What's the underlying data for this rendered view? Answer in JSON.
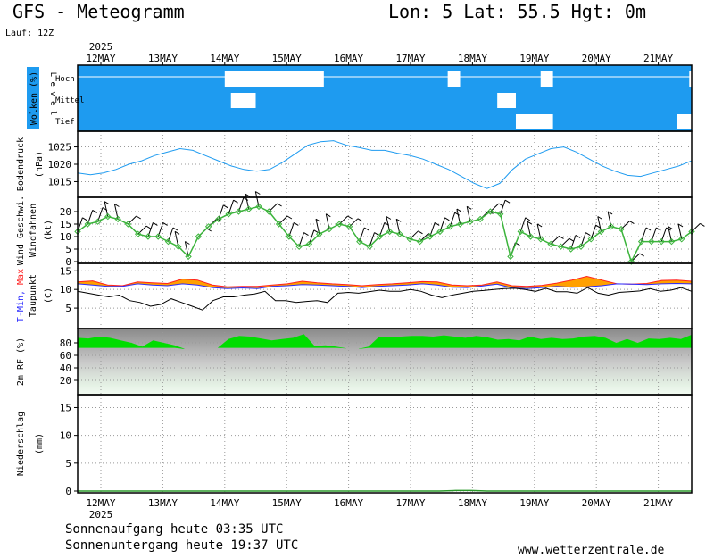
{
  "header": {
    "title": "GFS - Meteogramm",
    "location": "Lon: 5 Lat: 55.5 Hgt: 0m",
    "run": "Lauf: 12Z",
    "year": "2025"
  },
  "footer": {
    "sunrise": "Sonnenaufgang heute 03:35 UTC",
    "sunset": "Sonnenuntergang heute 19:37 UTC",
    "website": "www.wetterzentrale.de"
  },
  "colors": {
    "cloud_sky": "#1e9bf0",
    "pressure_line": "#1e9bf0",
    "wind": "#3cb43c",
    "tmin": "#2a2aff",
    "tmax": "#ff2020",
    "temp_fill": "#ffa000",
    "humidity": "#00dd00"
  },
  "chart_data": {
    "type": "line",
    "time_axis": {
      "days": [
        "12MAY",
        "13MAY",
        "14MAY",
        "15MAY",
        "16MAY",
        "17MAY",
        "18MAY",
        "19MAY",
        "20MAY",
        "21MAY"
      ],
      "start": "12MAY 00 UTC",
      "step_hours": 6
    },
    "panels": [
      {
        "id": "clouds",
        "ylabel": "Wolken (%)",
        "ylabel2": "L e v e l",
        "levels": [
          "Hoch",
          "Mittel",
          "Tief"
        ],
        "note": "mostly overcast at all levels; clear gaps shown in white",
        "gaps": [
          {
            "level": "Hoch",
            "from_day": 2.0,
            "to_day": 3.6
          },
          {
            "level": "Hoch",
            "from_day": 5.6,
            "to_day": 5.8
          },
          {
            "level": "Hoch",
            "from_day": 7.1,
            "to_day": 7.3
          },
          {
            "level": "Hoch",
            "from_day": 9.5,
            "to_day": 9.8
          },
          {
            "level": "Mittel",
            "from_day": 2.1,
            "to_day": 2.5
          },
          {
            "level": "Mittel",
            "from_day": 6.4,
            "to_day": 6.7
          },
          {
            "level": "Tief",
            "from_day": 6.7,
            "to_day": 7.3
          },
          {
            "level": "Tief",
            "from_day": 9.3,
            "to_day": 9.6
          }
        ]
      },
      {
        "id": "pressure",
        "ylabel": "Bodendruck",
        "unit": "(hPa)",
        "yticks": [
          1015,
          1020,
          1025
        ],
        "ylim": [
          1011,
          1029
        ],
        "series": [
          {
            "values": [
              1017.5,
              1017,
              1017.5,
              1018.5,
              1020,
              1021,
              1022.5,
              1023.5,
              1024.5,
              1024,
              1022.5,
              1021,
              1019.5,
              1018.5,
              1018,
              1018.5,
              1020.5,
              1023,
              1025.5,
              1026.5,
              1026.8,
              1025.5,
              1024.8,
              1024,
              1024,
              1023.2,
              1022.5,
              1021.5,
              1020,
              1018.5,
              1016.5,
              1014.5,
              1013,
              1014.5,
              1018.5,
              1021.5,
              1023,
              1024.5,
              1025,
              1023.5,
              1021.5,
              1019.5,
              1018,
              1016.8,
              1016.5,
              1017.5,
              1018.5,
              1019.5,
              1021
            ]
          }
        ]
      },
      {
        "id": "wind",
        "ylabel": "Wind Geschwi.",
        "ylabel2": "Windfahnen",
        "unit": "(kt)",
        "yticks": [
          0,
          5,
          10,
          15,
          20
        ],
        "ylim": [
          0,
          25
        ],
        "series": [
          {
            "name": "Wind Geschwi.",
            "values": [
              12,
              15,
              16,
              18,
              17,
              15,
              11,
              10,
              10,
              8,
              6,
              2,
              10,
              14,
              17,
              19,
              20,
              21,
              22,
              20,
              15,
              10,
              6,
              7,
              11,
              13,
              15,
              14,
              8,
              6,
              10,
              12,
              11,
              9,
              8,
              10,
              12,
              14,
              15,
              16,
              17,
              20,
              19,
              2,
              12,
              10,
              9,
              7,
              6,
              5,
              6,
              9,
              12,
              14,
              13,
              0,
              8,
              8,
              8,
              8,
              9,
              12
            ]
          }
        ]
      },
      {
        "id": "temperature",
        "ylabel": "T-Min, Max",
        "ylabel2": "Taupunkt",
        "unit": "(C)",
        "yticks": [
          5,
          10,
          15
        ],
        "ylim": [
          0,
          16.5
        ],
        "series": [
          {
            "name": "T-Min",
            "values": [
              11.5,
              11.2,
              10.8,
              10.8,
              11.5,
              11.2,
              11,
              11.5,
              11.2,
              10.5,
              10.2,
              10.4,
              10.2,
              10.8,
              11,
              11.3,
              11.2,
              11,
              10.8,
              10.5,
              10.8,
              11,
              11.2,
              11.5,
              11.2,
              10.6,
              10.5,
              10.9,
              11.4,
              10.4,
              10.2,
              10.5,
              10.8,
              10.6,
              10.7,
              11,
              11.5,
              11.4,
              11.3,
              11.5,
              11.6,
              11.5
            ]
          },
          {
            "name": "T-Max",
            "values": [
              12,
              12.3,
              11.2,
              11,
              12,
              11.8,
              11.6,
              12.8,
              12.5,
              11.2,
              10.7,
              10.8,
              10.8,
              11.2,
              11.5,
              12.2,
              11.8,
              11.5,
              11.3,
              11,
              11.3,
              11.5,
              11.8,
              12.1,
              12,
              11.2,
              11,
              11.2,
              12,
              11,
              10.8,
              11.1,
              11.7,
              12.5,
              13.5,
              12.5,
              11.5,
              11.4,
              11.6,
              12.4,
              12.5,
              12.2
            ]
          },
          {
            "name": "Taupunkt",
            "values": [
              9.5,
              9,
              8.5,
              8,
              8.5,
              7,
              6.5,
              5.5,
              6,
              7.5,
              6.5,
              5.5,
              4.5,
              7,
              8,
              8,
              8.5,
              8.8,
              9.5,
              7,
              7,
              6.5,
              6.8,
              7,
              6.5,
              9,
              9.2,
              9,
              9.4,
              9.8,
              9.5,
              9.5,
              10,
              9.5,
              8.5,
              7.8,
              8.5,
              9,
              9.5,
              9.7,
              10,
              10.2,
              10.3,
              10,
              9.5,
              10.3,
              9.4,
              9.4,
              9,
              10.5,
              9,
              8.5,
              9.2,
              9.4,
              9.6,
              10.2,
              9.5,
              9.8,
              10.5,
              9.5
            ]
          }
        ]
      },
      {
        "id": "humidity",
        "ylabel": "2m RF (%)",
        "yticks": [
          20,
          40,
          60,
          80
        ],
        "ylim": [
          0,
          100
        ],
        "series": [
          {
            "name": "2m RF",
            "values": [
              88,
              87,
              90,
              88,
              84,
              80,
              74,
              84,
              80,
              76,
              70,
              64,
              58,
              72,
              86,
              91,
              90,
              87,
              84,
              86,
              88,
              94,
              75,
              76,
              74,
              71,
              70,
              74,
              90,
              90,
              90,
              91,
              91,
              90,
              92,
              90,
              88,
              91,
              89,
              85,
              86,
              84,
              90,
              86,
              88,
              86,
              87,
              90,
              91,
              88,
              80,
              86,
              80,
              87,
              86,
              88,
              86,
              93
            ]
          }
        ]
      },
      {
        "id": "precipitation",
        "ylabel": "Niederschlag",
        "unit": "(mm)",
        "yticks": [
          0,
          5,
          10,
          15
        ],
        "ylim": [
          0,
          17
        ],
        "series": [
          {
            "name": "Niederschlag",
            "values": [
              0,
              0,
              0,
              0,
              0,
              0,
              0,
              0,
              0,
              0,
              0,
              0,
              0,
              0,
              0,
              0,
              0,
              0,
              0,
              0,
              0,
              0,
              0,
              0,
              0.1,
              0.1,
              0,
              0,
              0,
              0,
              0,
              0,
              0,
              0,
              0,
              0,
              0,
              0,
              0,
              0
            ]
          }
        ]
      }
    ]
  }
}
